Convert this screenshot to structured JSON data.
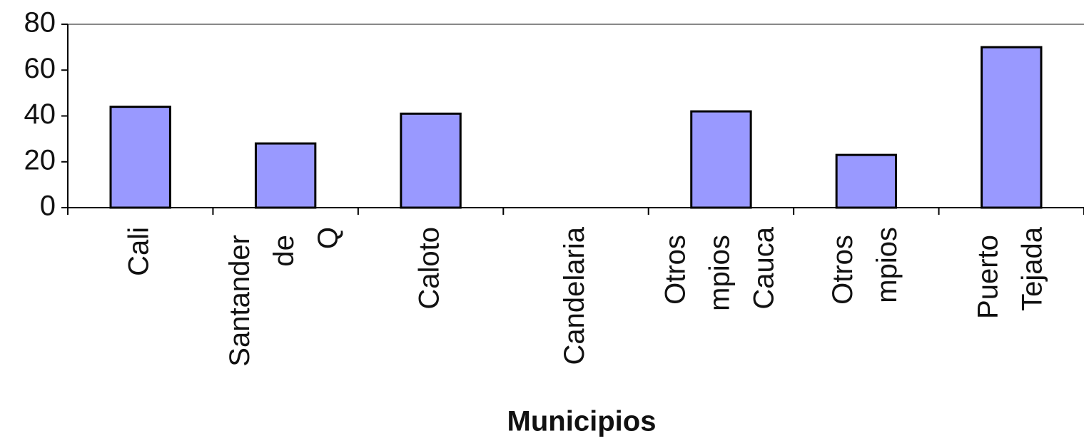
{
  "chart_data": {
    "type": "bar",
    "x_label": "Municipios",
    "categories": [
      "Cali",
      "Santander de Q",
      "Caloto",
      "Candelaria",
      "Otros mpios Cauca",
      "Otros mpios",
      "Puerto Tejada"
    ],
    "values": [
      44,
      28,
      41,
      0,
      42,
      23,
      70
    ],
    "color": "#9999ff",
    "ylim": [
      0,
      80
    ],
    "yticks": [
      0,
      20,
      40,
      60,
      80
    ]
  }
}
